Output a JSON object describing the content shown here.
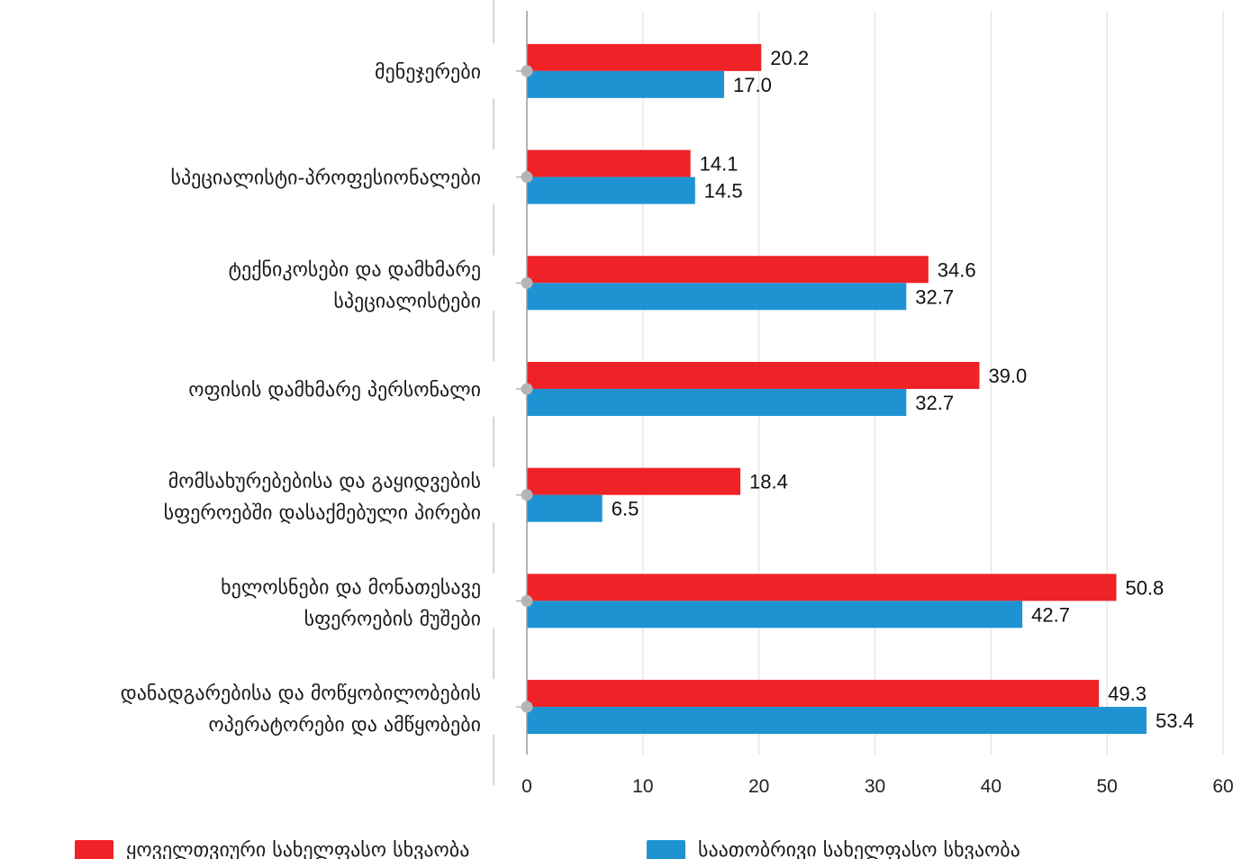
{
  "chart_data": {
    "type": "bar",
    "orientation": "horizontal",
    "categories": [
      [
        "მენეჯერები"
      ],
      [
        "სპეციალისტი-პროფესიონალები"
      ],
      [
        "ტექნიკოსები და დამხმარე",
        "სპეციალისტები"
      ],
      [
        "ოფისის დამხმარე პერსონალი"
      ],
      [
        "მომსახურებებისა და გაყიდვების",
        "სფეროებში დასაქმებული პირები"
      ],
      [
        "ხელოსნები და მონათესავე",
        "სფეროების მუშები"
      ],
      [
        "დანადგარებისა და მოწყობილობების",
        "ოპერატორები და ამწყობები"
      ]
    ],
    "series": [
      {
        "name": "ყოველთვიური სახელფასო სხვაობა",
        "color": "#ee2227",
        "values": [
          20.2,
          14.1,
          34.6,
          39.0,
          18.4,
          50.8,
          49.3
        ],
        "labels": [
          "20.2",
          "14.1",
          "34.6",
          "39.0",
          "18.4",
          "50.8",
          "49.3"
        ]
      },
      {
        "name": "საათობრივი სახელფასო სხვაობა",
        "color": "#1f93d2",
        "values": [
          17.0,
          14.5,
          32.7,
          32.7,
          6.5,
          42.7,
          53.4
        ],
        "labels": [
          "17.0",
          "14.5",
          "32.7",
          "32.7",
          "6.5",
          "42.7",
          "53.4"
        ]
      }
    ],
    "xlim": [
      0,
      60
    ],
    "xticks": [
      "0",
      "10",
      "20",
      "30",
      "40",
      "50",
      "60"
    ],
    "grid": true,
    "legend": "bottom"
  }
}
